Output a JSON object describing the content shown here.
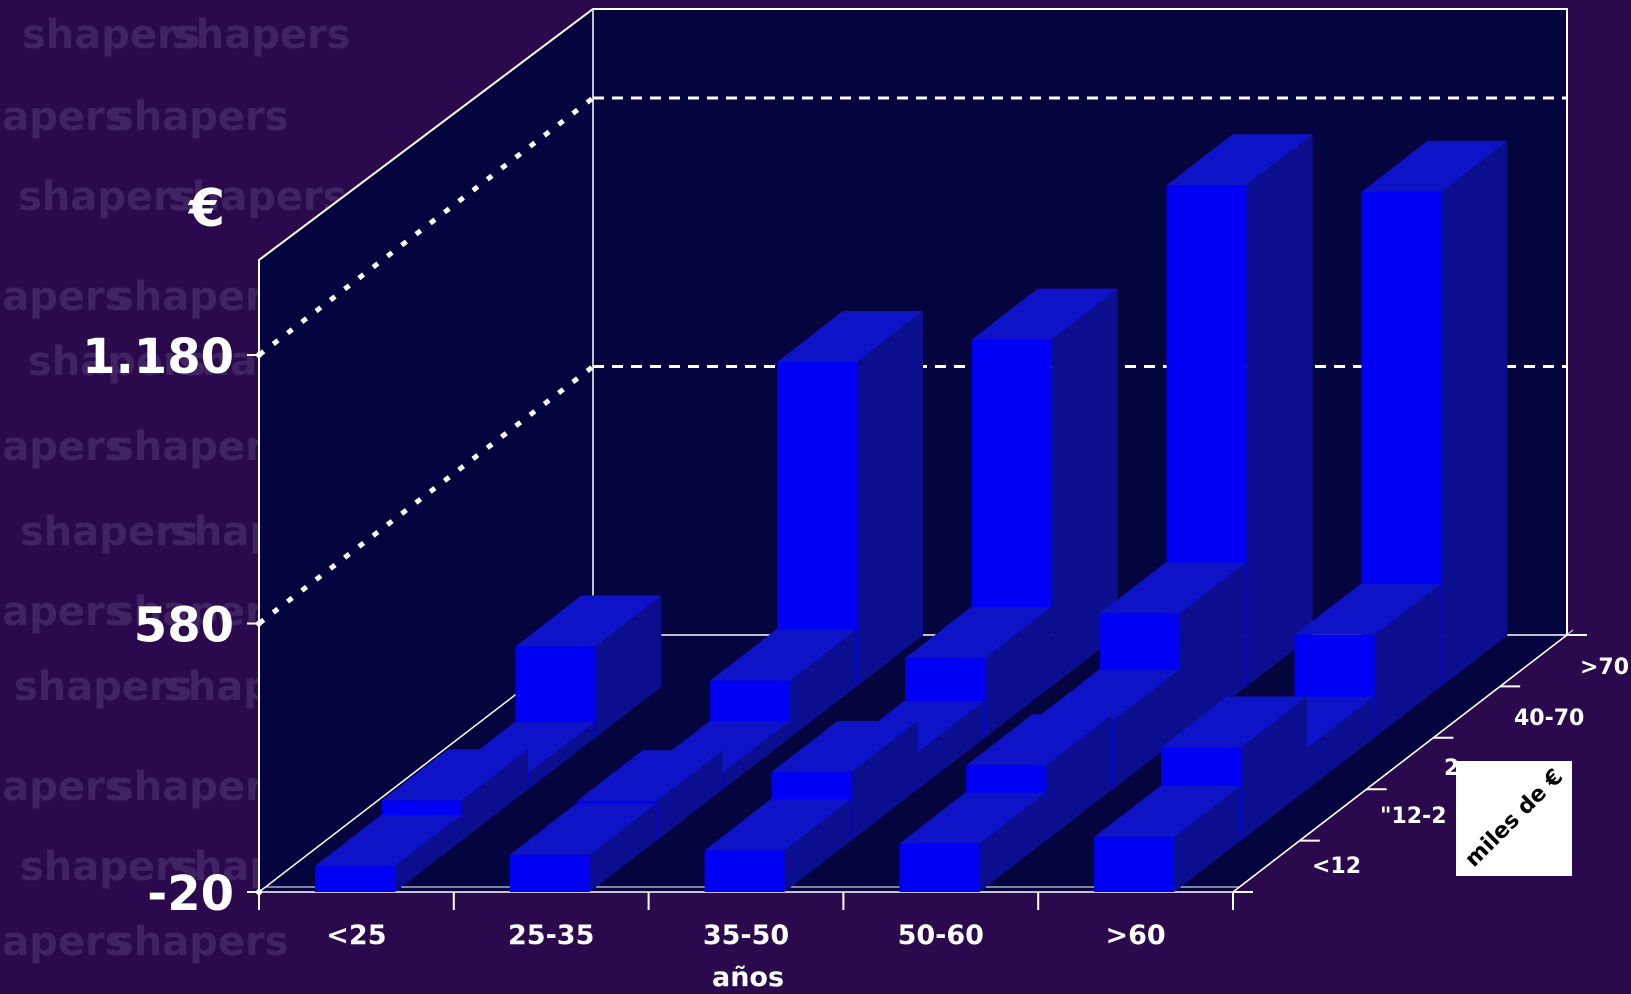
{
  "background_watermark": {
    "word": "shapers",
    "color": "#3f2363"
  },
  "chart_data": {
    "type": "bar",
    "subtype": "3d-bar",
    "unit_label": "€",
    "xlabel": "años",
    "zlabel": "miles de €",
    "x_categories": [
      "<25",
      "25-35",
      "35-50",
      "50-60",
      ">60"
    ],
    "z_categories": [
      "<12",
      "\"12-2",
      "2",
      "40-70",
      ">70"
    ],
    "y_ticks": [
      "1.180",
      "580",
      "-20"
    ],
    "y_tick_values": [
      1180,
      580,
      -20
    ],
    "ylim": [
      -20,
      1300
    ],
    "grid": "dashed",
    "series": [
      {
        "values": [
          58,
          83,
          93,
          108,
          123
        ]
      },
      {
        "values": [
          90,
          88,
          153,
          168,
          208
        ]
      },
      {
        "values": [
          36,
          38,
          83,
          153,
          93
        ]
      },
      {
        "values": [
          204,
          128,
          178,
          278,
          230
        ]
      },
      {
        "values": [
          0,
          725,
          775,
          1120,
          1105
        ]
      }
    ],
    "colors": {
      "bar_front": "#0000f5",
      "bar_top": "#0f13c7",
      "bar_side": "#0b0e8e",
      "wall": "#04043e",
      "line": "#ffffff"
    }
  }
}
